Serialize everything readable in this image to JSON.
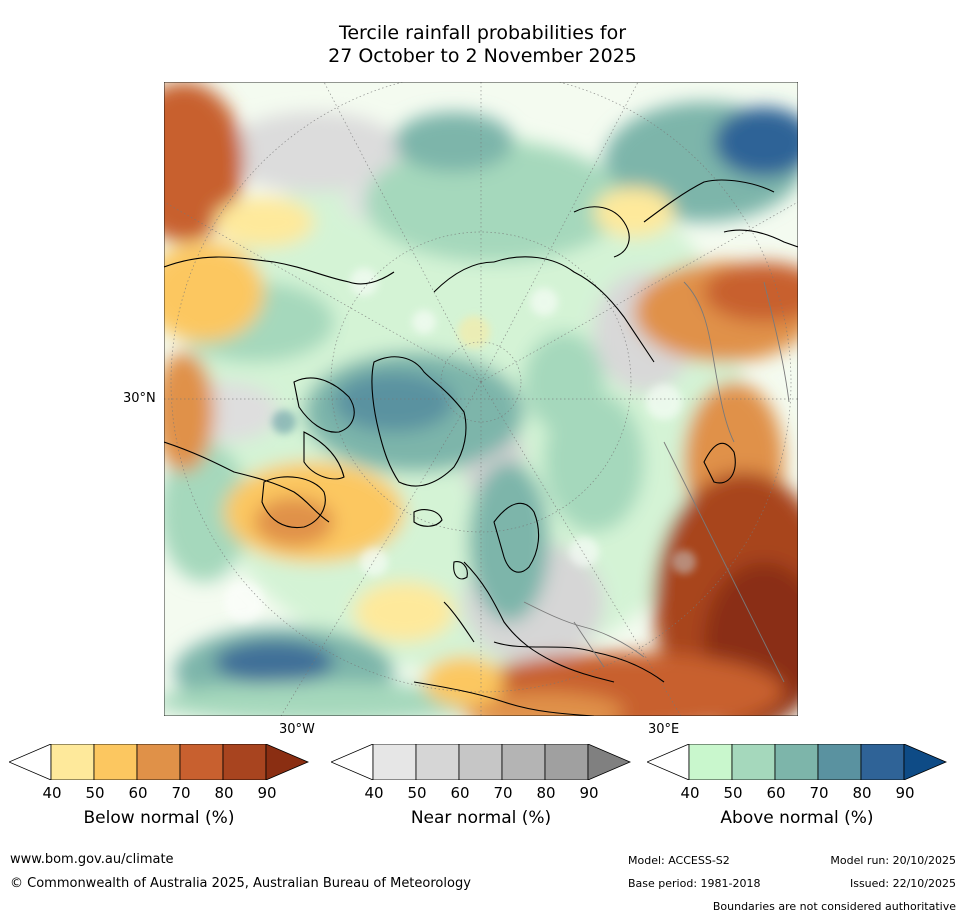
{
  "title": {
    "line1": "Tercile rainfall probabilities for",
    "line2": "27 October to 2 November 2025"
  },
  "map": {
    "ticks": {
      "lat_30n": "30°N",
      "lon_30w": "30°W",
      "lon_30e": "30°E"
    }
  },
  "legends": {
    "below": {
      "title": "Below normal (%)",
      "labels": [
        "40",
        "50",
        "60",
        "70",
        "80",
        "90"
      ],
      "colors": [
        "#ffffff",
        "#fee99b",
        "#fcc760",
        "#e09148",
        "#c8602f",
        "#a8441f",
        "#8a2e12"
      ]
    },
    "near": {
      "title": "Near normal (%)",
      "labels": [
        "40",
        "50",
        "60",
        "70",
        "80",
        "90"
      ],
      "colors": [
        "#ffffff",
        "#e6e6e6",
        "#d6d6d6",
        "#c6c6c6",
        "#b4b4b4",
        "#a0a0a0",
        "#808080"
      ]
    },
    "above": {
      "title": "Above normal (%)",
      "labels": [
        "40",
        "50",
        "60",
        "70",
        "80",
        "90"
      ],
      "colors": [
        "#ffffff",
        "#c9f7cd",
        "#a5d8bc",
        "#7db5aa",
        "#5a92a0",
        "#2f6397",
        "#0e4b86"
      ]
    }
  },
  "footer": {
    "website": "www.bom.gov.au/climate",
    "copyright": "© Commonwealth of Australia 2025, Australian Bureau of Meteorology",
    "model": "Model: ACCESS-S2",
    "base_period": "Base period: 1981-2018",
    "model_run": "Model run: 20/10/2025",
    "issued": "Issued: 22/10/2025",
    "disclaimer": "Boundaries are not considered authoritative"
  }
}
